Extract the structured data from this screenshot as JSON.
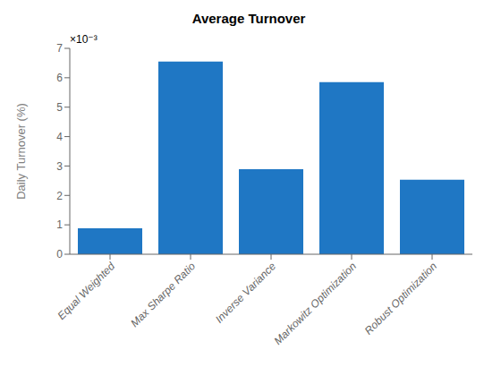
{
  "chart_data": {
    "type": "bar",
    "title": "Average Turnover",
    "ylabel": "Daily Turnover (%)",
    "annotations": [
      "×10⁻³"
    ],
    "categories": [
      "Equal Weighted",
      "Max Sharpe Ratio",
      "Inverse Variance",
      "Markowitz Optimization",
      "Robust Optimization"
    ],
    "values": [
      0.00088,
      0.00655,
      0.00289,
      0.00585,
      0.00253
    ],
    "color": "#1f77c4",
    "ylim": [
      0,
      0.007
    ],
    "yticks": [
      0,
      {
        "value": 0.001,
        "label": "1"
      },
      {
        "value": 0.002,
        "label": "2"
      },
      {
        "value": 0.003,
        "label": "3"
      },
      {
        "value": 0.004,
        "label": "4"
      },
      {
        "value": 0.005,
        "label": "5"
      },
      {
        "value": 0.006,
        "label": "6"
      },
      {
        "value": 0.007,
        "label": "7"
      }
    ]
  }
}
